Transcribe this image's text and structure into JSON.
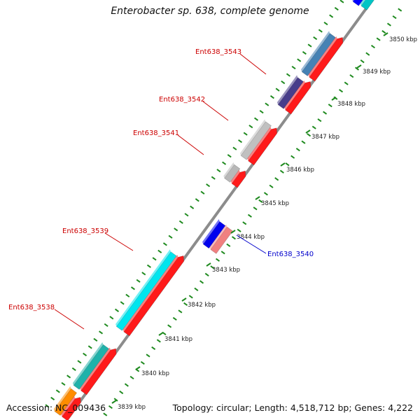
{
  "title": "Enterobacter sp. 638, complete genome",
  "footer": {
    "accession": "Accession: NC_009436",
    "summary": "Topology: circular; Length: 4,518,712 bp; Genes: 4,222"
  },
  "colors": {
    "backbone": "#8c8c8c",
    "tick": "#1f8a1f",
    "label_red": "#cc0000",
    "label_blue": "#0000cc"
  },
  "scale_labels": [
    "3839 kbp",
    "3840 kbp",
    "3841 kbp",
    "3842 kbp",
    "3843 kbp",
    "3844 kbp",
    "3845 kbp",
    "3846 kbp",
    "3847 kbp",
    "3848 kbp",
    "3849 kbp",
    "3850 kbp"
  ],
  "gene_labels": {
    "g3538": "Ent638_3538",
    "g3539": "Ent638_3539",
    "g3540": "Ent638_3540",
    "g3541": "Ent638_3541",
    "g3542": "Ent638_3542",
    "g3543": "Ent638_3543"
  }
}
